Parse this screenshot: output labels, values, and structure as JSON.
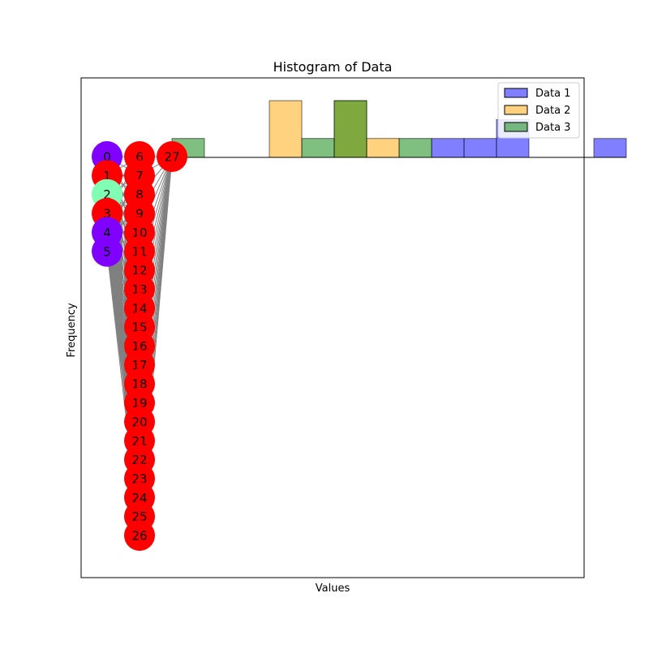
{
  "chart_data": {
    "type": "bar",
    "title": "Histogram of Data",
    "xlabel": "Values",
    "ylabel": "Frequency",
    "colors": {
      "Data 1": "#0000ff",
      "Data 2": "#ffa500",
      "Data 3": "#008000"
    },
    "series": [
      {
        "name": "Data 1",
        "bins": [
          [
            9,
            10,
            1
          ],
          [
            10,
            11,
            1
          ],
          [
            11,
            12,
            2
          ],
          [
            14,
            15,
            1
          ]
        ]
      },
      {
        "name": "Data 2",
        "bins": [
          [
            4,
            5,
            3
          ],
          [
            6,
            7,
            3
          ],
          [
            7,
            8,
            1
          ]
        ]
      },
      {
        "name": "Data 3",
        "bins": [
          [
            1,
            2,
            1
          ],
          [
            5,
            6,
            1
          ],
          [
            6,
            7,
            3
          ],
          [
            8,
            9,
            1
          ]
        ]
      }
    ],
    "legend": {
      "position": "top-right",
      "entries": [
        "Data 1",
        "Data 2",
        "Data 3"
      ]
    },
    "graph_overlay": {
      "nodes": [
        {
          "id": "0",
          "column": 0,
          "row": 0,
          "color": "#8000ff"
        },
        {
          "id": "1",
          "column": 0,
          "row": 1,
          "color": "#ff0000"
        },
        {
          "id": "2",
          "column": 0,
          "row": 2,
          "color": "#80ffb4"
        },
        {
          "id": "3",
          "column": 0,
          "row": 3,
          "color": "#ff0000"
        },
        {
          "id": "4",
          "column": 0,
          "row": 4,
          "color": "#8000ff"
        },
        {
          "id": "5",
          "column": 0,
          "row": 5,
          "color": "#8000ff"
        },
        {
          "id": "6",
          "column": 1,
          "row": 0,
          "color": "#ff0000"
        },
        {
          "id": "7",
          "column": 1,
          "row": 1,
          "color": "#ff0000"
        },
        {
          "id": "8",
          "column": 1,
          "row": 2,
          "color": "#ff0000"
        },
        {
          "id": "9",
          "column": 1,
          "row": 3,
          "color": "#ff0000"
        },
        {
          "id": "10",
          "column": 1,
          "row": 4,
          "color": "#ff0000"
        },
        {
          "id": "11",
          "column": 1,
          "row": 5,
          "color": "#ff0000"
        },
        {
          "id": "12",
          "column": 1,
          "row": 6,
          "color": "#ff0000"
        },
        {
          "id": "13",
          "column": 1,
          "row": 7,
          "color": "#ff0000"
        },
        {
          "id": "14",
          "column": 1,
          "row": 8,
          "color": "#ff0000"
        },
        {
          "id": "15",
          "column": 1,
          "row": 9,
          "color": "#ff0000"
        },
        {
          "id": "16",
          "column": 1,
          "row": 10,
          "color": "#ff0000"
        },
        {
          "id": "17",
          "column": 1,
          "row": 11,
          "color": "#ff0000"
        },
        {
          "id": "18",
          "column": 1,
          "row": 12,
          "color": "#ff0000"
        },
        {
          "id": "19",
          "column": 1,
          "row": 13,
          "color": "#ff0000"
        },
        {
          "id": "20",
          "column": 1,
          "row": 14,
          "color": "#ff0000"
        },
        {
          "id": "21",
          "column": 1,
          "row": 15,
          "color": "#ff0000"
        },
        {
          "id": "22",
          "column": 1,
          "row": 16,
          "color": "#ff0000"
        },
        {
          "id": "23",
          "column": 1,
          "row": 17,
          "color": "#ff0000"
        },
        {
          "id": "24",
          "column": 1,
          "row": 18,
          "color": "#ff0000"
        },
        {
          "id": "25",
          "column": 1,
          "row": 19,
          "color": "#ff0000"
        },
        {
          "id": "26",
          "column": 1,
          "row": 20,
          "color": "#ff0000"
        },
        {
          "id": "27",
          "column": 2,
          "row": 0,
          "color": "#ff0000"
        }
      ],
      "edge_color": "#808080"
    }
  }
}
